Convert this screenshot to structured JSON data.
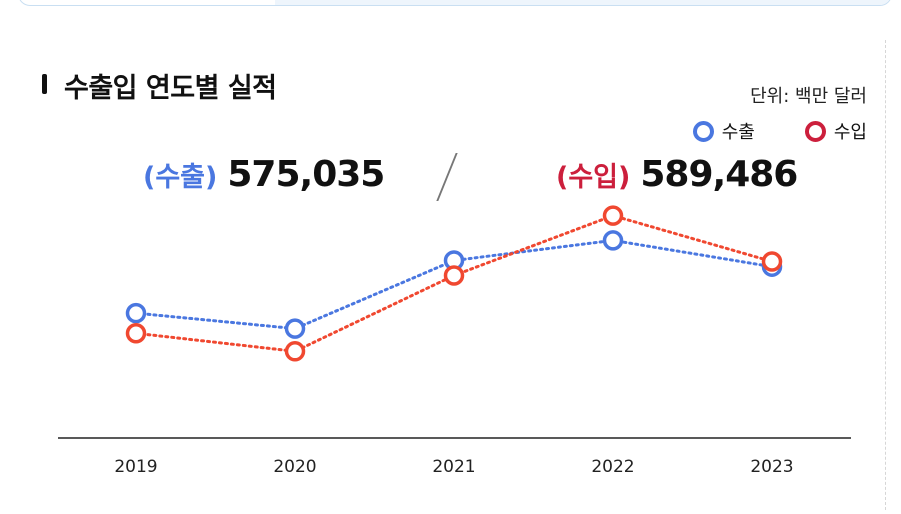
{
  "title": "수출입 연도별 실적",
  "unit": "단위: 백만 달러",
  "totals": {
    "export": {
      "label": "(수출)",
      "value": "575,035",
      "color": "#4a77e0"
    },
    "import": {
      "label": "(수입)",
      "value": "589,486",
      "color": "#cc1f3c"
    }
  },
  "chart_data": {
    "type": "line",
    "categories": [
      "2019",
      "2020",
      "2021",
      "2022",
      "2023"
    ],
    "series": [
      {
        "name": "수출",
        "values": [
          542,
          512,
          644,
          683,
          632
        ],
        "color": "#4a77e0",
        "legend_color": "#4a77e0"
      },
      {
        "name": "수입",
        "values": [
          503,
          468,
          615,
          731,
          642
        ],
        "color": "#f04830",
        "legend_color": "#cc1f3c"
      }
    ],
    "ylim": [
      300,
      800
    ],
    "line_style": "dotted",
    "marker": "hollow-circle",
    "grid": false,
    "legend_position": "top-right",
    "xlabel": "",
    "ylabel": ""
  }
}
